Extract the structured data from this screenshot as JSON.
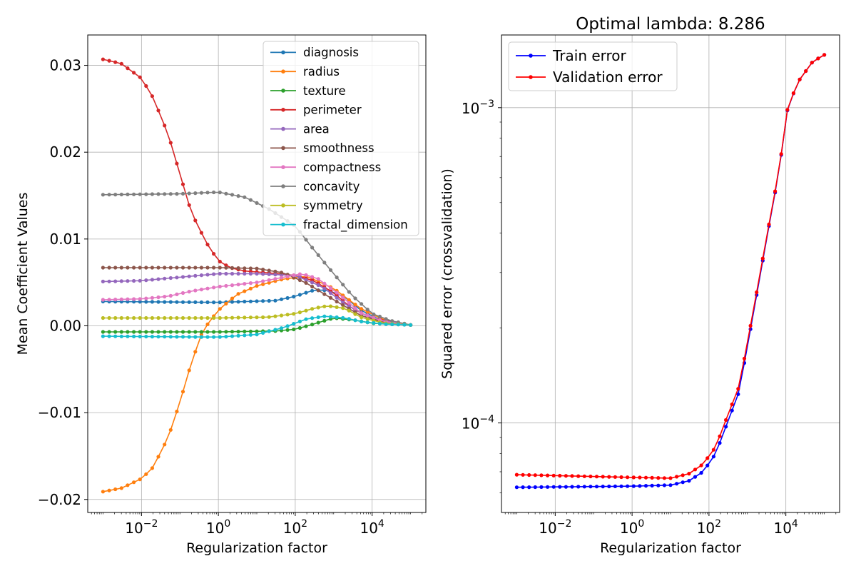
{
  "chart_data": [
    {
      "type": "line",
      "title": "",
      "xlabel": "Regularization factor",
      "ylabel": "Mean Coefficient Values",
      "xscale": "log",
      "xlim": [
        0.0004,
        250000
      ],
      "ylim": [
        -0.0215,
        0.0335
      ],
      "grid": true,
      "legend": "top-right",
      "marker": "dot",
      "x_range": [
        0.001,
        100000
      ],
      "n_points": 51,
      "xticks": [
        {
          "value": 0.01,
          "base": "10",
          "exp": "−2"
        },
        {
          "value": 1,
          "base": "10",
          "exp": "0"
        },
        {
          "value": 100,
          "base": "10",
          "exp": "2"
        },
        {
          "value": 10000,
          "base": "10",
          "exp": "4"
        }
      ],
      "yticks": [
        {
          "value": 0.03,
          "label": "0.03"
        },
        {
          "value": 0.02,
          "label": "0.02"
        },
        {
          "value": 0.01,
          "label": "0.01"
        },
        {
          "value": 0.0,
          "label": "0.00"
        },
        {
          "value": -0.01,
          "label": "−0.01"
        },
        {
          "value": -0.02,
          "label": "−0.02"
        }
      ],
      "series": [
        {
          "name": "diagnosis",
          "color": "#1f77b4",
          "points": [
            [
              0.001,
              0.0028
            ],
            [
              1,
              0.0027
            ],
            [
              30,
              0.0029
            ],
            [
              100,
              0.0034
            ],
            [
              300,
              0.0041
            ],
            [
              700,
              0.0041
            ],
            [
              2000,
              0.0033
            ],
            [
              5000,
              0.0018
            ],
            [
              20000,
              0.0005
            ],
            [
              100000,
              0.0001
            ]
          ]
        },
        {
          "name": "radius",
          "color": "#ff7f0e",
          "points": [
            [
              0.001,
              -0.0191
            ],
            [
              0.003,
              -0.0187
            ],
            [
              0.01,
              -0.0176
            ],
            [
              0.02,
              -0.0163
            ],
            [
              0.05,
              -0.0128
            ],
            [
              0.1,
              -0.0088
            ],
            [
              0.2,
              -0.0042
            ],
            [
              0.4,
              -0.0005
            ],
            [
              1,
              0.0018
            ],
            [
              3,
              0.0036
            ],
            [
              10,
              0.0046
            ],
            [
              50,
              0.0054
            ],
            [
              200,
              0.0057
            ],
            [
              1000,
              0.0043
            ],
            [
              5000,
              0.002
            ],
            [
              20000,
              0.0007
            ],
            [
              100000,
              0.0001
            ]
          ]
        },
        {
          "name": "texture",
          "color": "#2ca02c",
          "points": [
            [
              0.001,
              -0.0007
            ],
            [
              1,
              -0.0007
            ],
            [
              30,
              -0.0006
            ],
            [
              100,
              -0.0004
            ],
            [
              300,
              0.0002
            ],
            [
              1000,
              0.0009
            ],
            [
              3000,
              0.0007
            ],
            [
              10000,
              0.0003
            ],
            [
              100000,
              0.0001
            ]
          ]
        },
        {
          "name": "perimeter",
          "color": "#d62728",
          "points": [
            [
              0.001,
              0.0307
            ],
            [
              0.003,
              0.0302
            ],
            [
              0.01,
              0.0285
            ],
            [
              0.02,
              0.0263
            ],
            [
              0.05,
              0.022
            ],
            [
              0.1,
              0.0175
            ],
            [
              0.2,
              0.013
            ],
            [
              0.5,
              0.0095
            ],
            [
              1,
              0.0075
            ],
            [
              2,
              0.0067
            ],
            [
              5,
              0.0063
            ],
            [
              20,
              0.0061
            ],
            [
              100,
              0.0058
            ],
            [
              300,
              0.0052
            ],
            [
              1000,
              0.0038
            ],
            [
              3000,
              0.002
            ],
            [
              10000,
              0.0009
            ],
            [
              100000,
              0.0001
            ]
          ]
        },
        {
          "name": "area",
          "color": "#9467bd",
          "points": [
            [
              0.001,
              0.0051
            ],
            [
              0.01,
              0.0052
            ],
            [
              0.1,
              0.0056
            ],
            [
              1,
              0.006
            ],
            [
              10,
              0.006
            ],
            [
              100,
              0.0058
            ],
            [
              500,
              0.0045
            ],
            [
              2000,
              0.0025
            ],
            [
              10000,
              0.0008
            ],
            [
              100000,
              0.0001
            ]
          ]
        },
        {
          "name": "smoothness",
          "color": "#8c564b",
          "points": [
            [
              0.001,
              0.0067
            ],
            [
              1,
              0.0067
            ],
            [
              10,
              0.0066
            ],
            [
              50,
              0.0061
            ],
            [
              200,
              0.0049
            ],
            [
              1000,
              0.003
            ],
            [
              5000,
              0.0012
            ],
            [
              20000,
              0.0004
            ],
            [
              100000,
              0.0001
            ]
          ]
        },
        {
          "name": "compactness",
          "color": "#e377c2",
          "points": [
            [
              0.001,
              0.003
            ],
            [
              0.01,
              0.0031
            ],
            [
              0.05,
              0.0034
            ],
            [
              0.2,
              0.004
            ],
            [
              1,
              0.0045
            ],
            [
              10,
              0.005
            ],
            [
              50,
              0.0056
            ],
            [
              150,
              0.006
            ],
            [
              400,
              0.0054
            ],
            [
              1500,
              0.0035
            ],
            [
              5000,
              0.0015
            ],
            [
              20000,
              0.0005
            ],
            [
              100000,
              0.0001
            ]
          ]
        },
        {
          "name": "concavity",
          "color": "#7f7f7f",
          "points": [
            [
              0.001,
              0.0151
            ],
            [
              0.1,
              0.0152
            ],
            [
              1,
              0.0154
            ],
            [
              5,
              0.0148
            ],
            [
              20,
              0.0135
            ],
            [
              100,
              0.0115
            ],
            [
              300,
              0.0088
            ],
            [
              1000,
              0.006
            ],
            [
              3000,
              0.0035
            ],
            [
              10000,
              0.0014
            ],
            [
              30000,
              0.0006
            ],
            [
              100000,
              0.0001
            ]
          ]
        },
        {
          "name": "symmetry",
          "color": "#bcbd22",
          "points": [
            [
              0.001,
              0.0009
            ],
            [
              1,
              0.0009
            ],
            [
              20,
              0.001
            ],
            [
              100,
              0.0014
            ],
            [
              300,
              0.002
            ],
            [
              700,
              0.0023
            ],
            [
              2000,
              0.002
            ],
            [
              5000,
              0.001
            ],
            [
              20000,
              0.0003
            ],
            [
              100000,
              0.0001
            ]
          ]
        },
        {
          "name": "fractal_dimension",
          "color": "#17becf",
          "points": [
            [
              0.001,
              -0.0012
            ],
            [
              1,
              -0.0013
            ],
            [
              10,
              -0.001
            ],
            [
              50,
              -0.0002
            ],
            [
              200,
              0.0008
            ],
            [
              600,
              0.0011
            ],
            [
              2000,
              0.0009
            ],
            [
              5000,
              0.0005
            ],
            [
              20000,
              0.0002
            ],
            [
              100000,
              0.0001
            ]
          ]
        }
      ]
    },
    {
      "type": "line",
      "title": "Optimal lambda: 8.286",
      "xlabel": "Regularization factor",
      "ylabel": "Squared error (crossvalidation)",
      "xscale": "log",
      "yscale": "log",
      "xlim": [
        0.0004,
        250000
      ],
      "ylim": [
        5.2e-05,
        0.0017
      ],
      "grid": true,
      "legend": "top-left",
      "marker": "dot",
      "x_range": [
        0.001,
        100000
      ],
      "n_points": 51,
      "xticks": [
        {
          "value": 0.01,
          "base": "10",
          "exp": "−2"
        },
        {
          "value": 1,
          "base": "10",
          "exp": "0"
        },
        {
          "value": 100,
          "base": "10",
          "exp": "2"
        },
        {
          "value": 10000,
          "base": "10",
          "exp": "4"
        }
      ],
      "yticks": [
        {
          "value": 0.001,
          "base": "10",
          "exp": "−3"
        },
        {
          "value": 0.0001,
          "base": "10",
          "exp": "−4"
        }
      ],
      "yminor": [
        6e-05,
        7e-05,
        8e-05,
        9e-05,
        0.0002,
        0.0003,
        0.0004,
        0.0005,
        0.0006,
        0.0007,
        0.0008,
        0.0009
      ],
      "series": [
        {
          "name": "Train error",
          "color": "#0000ff",
          "points": [
            [
              0.001,
              6.25e-05
            ],
            [
              1,
              6.3e-05
            ],
            [
              10,
              6.35e-05
            ],
            [
              30,
              6.55e-05
            ],
            [
              70,
              7e-05
            ],
            [
              150,
              8e-05
            ],
            [
              300,
              0.0001
            ],
            [
              600,
              0.000125
            ],
            [
              1000,
              0.000175
            ],
            [
              2000,
              0.00028
            ],
            [
              4000,
              0.00045
            ],
            [
              7000,
              0.00065
            ],
            [
              10000,
              0.00095
            ],
            [
              20000,
              0.0012
            ],
            [
              50000,
              0.0014
            ],
            [
              100000,
              0.00147
            ]
          ]
        },
        {
          "name": "Validation error",
          "color": "#ff0000",
          "points": [
            [
              0.001,
              6.85e-05
            ],
            [
              1,
              6.72e-05
            ],
            [
              10,
              6.68e-05
            ],
            [
              30,
              6.9e-05
            ],
            [
              70,
              7.4e-05
            ],
            [
              150,
              8.4e-05
            ],
            [
              300,
              0.000105
            ],
            [
              600,
              0.00013
            ],
            [
              1000,
              0.00018
            ],
            [
              2000,
              0.000285
            ],
            [
              4000,
              0.000455
            ],
            [
              7000,
              0.000655
            ],
            [
              10000,
              0.000955
            ],
            [
              20000,
              0.0012
            ],
            [
              50000,
              0.0014
            ],
            [
              100000,
              0.00147
            ]
          ]
        }
      ]
    }
  ]
}
